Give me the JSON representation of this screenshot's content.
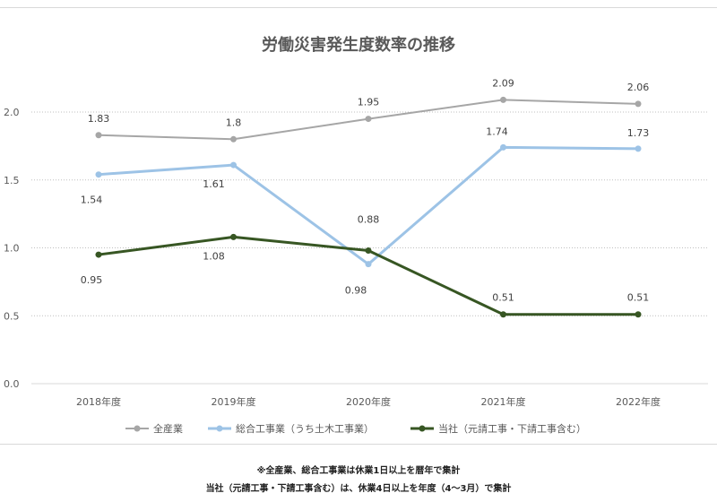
{
  "chart_data": {
    "type": "line",
    "title": "労働災害発生度数率の推移",
    "categories": [
      "2018年度",
      "2019年度",
      "2020年度",
      "2021年度",
      "2022年度"
    ],
    "ylim": [
      0,
      2.2
    ],
    "yticks": [
      "0.0",
      "0.5",
      "1.0",
      "1.5",
      "2.0"
    ],
    "grid": "horizontal-dotted",
    "legend": "bottom",
    "series": [
      {
        "name": "全産業",
        "color": "#a6a6a6",
        "values": [
          1.83,
          1.8,
          1.95,
          2.09,
          2.06
        ],
        "labels": [
          "1.83",
          "1.8",
          "1.95",
          "2.09",
          "2.06"
        ]
      },
      {
        "name": "総合工事業（うち土木工事業）",
        "color": "#9dc3e6",
        "values": [
          1.54,
          1.61,
          0.88,
          1.74,
          1.73
        ],
        "labels": [
          "1.54",
          "1.61",
          "0.88",
          "1.74",
          "1.73"
        ]
      },
      {
        "name": "当社（元請工事・下請工事含む）",
        "color": "#375623",
        "values": [
          0.95,
          1.08,
          0.98,
          0.51,
          0.51
        ],
        "labels": [
          "0.95",
          "1.08",
          "0.98",
          "0.51",
          "0.51"
        ]
      }
    ]
  },
  "notes": [
    "※全産業、総合工事業は休業1日以上を暦年で集計",
    "当社（元請工事・下請工事含む）は、休業4日以上を年度（4～3月）で集計"
  ]
}
